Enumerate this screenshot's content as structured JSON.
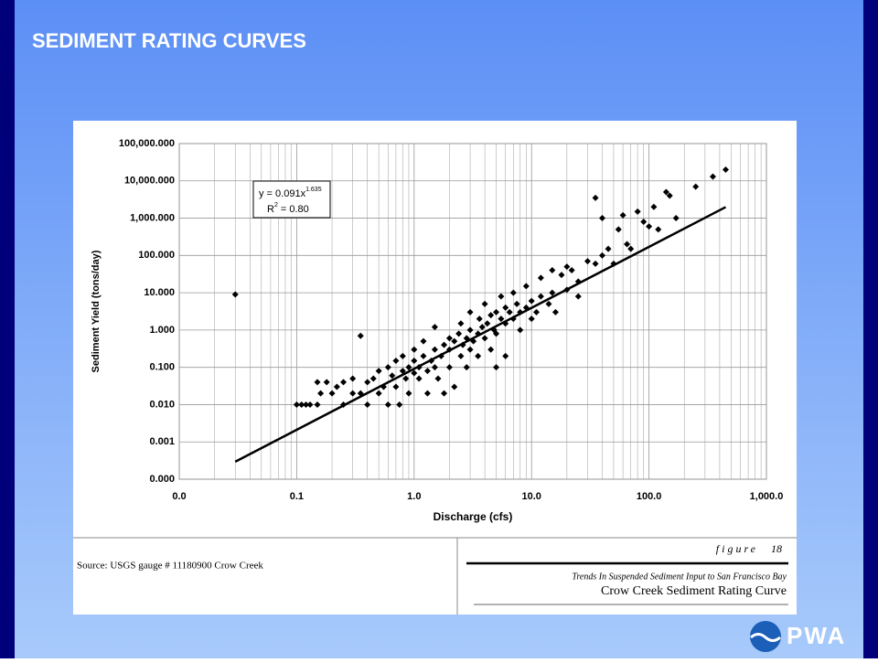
{
  "slide_title": "SEDIMENT RATING CURVES",
  "source": "Source: USGS gauge # 11180900 Crow Creek",
  "figure_word": "figure",
  "figure_number": "18",
  "figure_subtitle": "Trends In Suspended Sediment Input to San Francisco Bay",
  "figure_title": "Crow Creek Sediment Rating Curve",
  "logo": "PWA",
  "chart_data": {
    "type": "scatter",
    "xlabel": "Discharge (cfs)",
    "ylabel": "Sediment Yield (tons/day)",
    "log_x": true,
    "log_y": true,
    "grid": true,
    "color": "#000000",
    "annotation": {
      "equation": "y = 0.091x",
      "exponent": "1.635",
      "r2_symbol": "R",
      "r2_power": "2",
      "r2_value": "= 0.80"
    },
    "xlim": [
      0.01,
      1000
    ],
    "xticks": [
      {
        "value": 0.01,
        "label": "0.0"
      },
      {
        "value": 0.1,
        "label": "0.1"
      },
      {
        "value": 1,
        "label": "1.0"
      },
      {
        "value": 10,
        "label": "10.0"
      },
      {
        "value": 100,
        "label": "100.0"
      },
      {
        "value": 1000,
        "label": "1,000.0"
      }
    ],
    "ylim": [
      0.0001,
      100000
    ],
    "yticks": [
      {
        "value": 0.0001,
        "label": "0.000"
      },
      {
        "value": 0.001,
        "label": "0.001"
      },
      {
        "value": 0.01,
        "label": "0.010"
      },
      {
        "value": 0.1,
        "label": "0.100"
      },
      {
        "value": 1,
        "label": "1.000"
      },
      {
        "value": 10,
        "label": "10.000"
      },
      {
        "value": 100,
        "label": "100.000"
      },
      {
        "value": 1000,
        "label": "1,000.000"
      },
      {
        "value": 10000,
        "label": "10,000.000"
      },
      {
        "value": 100000,
        "label": "100,000.000"
      }
    ],
    "x": [
      0.03,
      0.1,
      0.11,
      0.12,
      0.13,
      0.15,
      0.16,
      0.15,
      0.18,
      0.2,
      0.22,
      0.25,
      0.25,
      0.3,
      0.3,
      0.35,
      0.35,
      0.4,
      0.4,
      0.45,
      0.5,
      0.5,
      0.55,
      0.6,
      0.6,
      0.65,
      0.7,
      0.7,
      0.75,
      0.8,
      0.8,
      0.85,
      0.9,
      0.9,
      1.0,
      1.0,
      1.0,
      1.1,
      1.1,
      1.2,
      1.2,
      1.3,
      1.3,
      1.4,
      1.5,
      1.5,
      1.5,
      1.6,
      1.7,
      1.8,
      1.8,
      2.0,
      2.0,
      2.0,
      2.2,
      2.2,
      2.4,
      2.5,
      2.5,
      2.6,
      2.8,
      2.8,
      3.0,
      3.0,
      3.0,
      3.2,
      3.5,
      3.5,
      3.6,
      3.8,
      4.0,
      4.0,
      4.2,
      4.5,
      4.5,
      4.8,
      5,
      5,
      5,
      5.5,
      5.5,
      6,
      6,
      6,
      6.5,
      7,
      7,
      7.5,
      8,
      8,
      9,
      9,
      10,
      10,
      11,
      12,
      12,
      14,
      15,
      15,
      16,
      18,
      20,
      20,
      22,
      25,
      25,
      30,
      35,
      35,
      40,
      40,
      45,
      50,
      55,
      60,
      65,
      70,
      80,
      90,
      100,
      110,
      120,
      140,
      150,
      170,
      250,
      350,
      450
    ],
    "values": [
      9,
      0.01,
      0.01,
      0.01,
      0.01,
      0.01,
      0.02,
      0.04,
      0.04,
      0.02,
      0.03,
      0.04,
      0.01,
      0.02,
      0.05,
      0.7,
      0.02,
      0.01,
      0.04,
      0.05,
      0.02,
      0.08,
      0.03,
      0.1,
      0.01,
      0.06,
      0.15,
      0.03,
      0.01,
      0.08,
      0.2,
      0.05,
      0.1,
      0.02,
      0.07,
      0.15,
      0.3,
      0.1,
      0.05,
      0.2,
      0.5,
      0.08,
      0.02,
      0.15,
      0.3,
      1.2,
      0.1,
      0.05,
      0.2,
      0.4,
      0.02,
      0.3,
      0.6,
      0.1,
      0.5,
      0.03,
      0.8,
      0.2,
      1.5,
      0.4,
      0.6,
      0.1,
      1.0,
      0.3,
      3,
      0.5,
      0.8,
      0.2,
      2,
      1.2,
      0.6,
      5,
      1.5,
      0.3,
      2.5,
      1,
      0.8,
      3,
      0.1,
      2,
      8,
      1.5,
      4,
      0.2,
      3,
      2,
      10,
      5,
      3,
      1,
      4,
      15,
      2,
      6,
      3,
      25,
      8,
      5,
      10,
      40,
      3,
      30,
      12,
      50,
      40,
      20,
      8,
      70,
      3500,
      60,
      1000,
      100,
      150,
      60,
      500,
      1200,
      200,
      150,
      1500,
      800,
      600,
      2000,
      500,
      5000,
      4000,
      1000,
      7000,
      13000,
      20000
    ],
    "trendline": {
      "x": [
        0.03,
        450
      ],
      "values": [
        0.000295,
        1984
      ],
      "color": "#000000"
    }
  }
}
